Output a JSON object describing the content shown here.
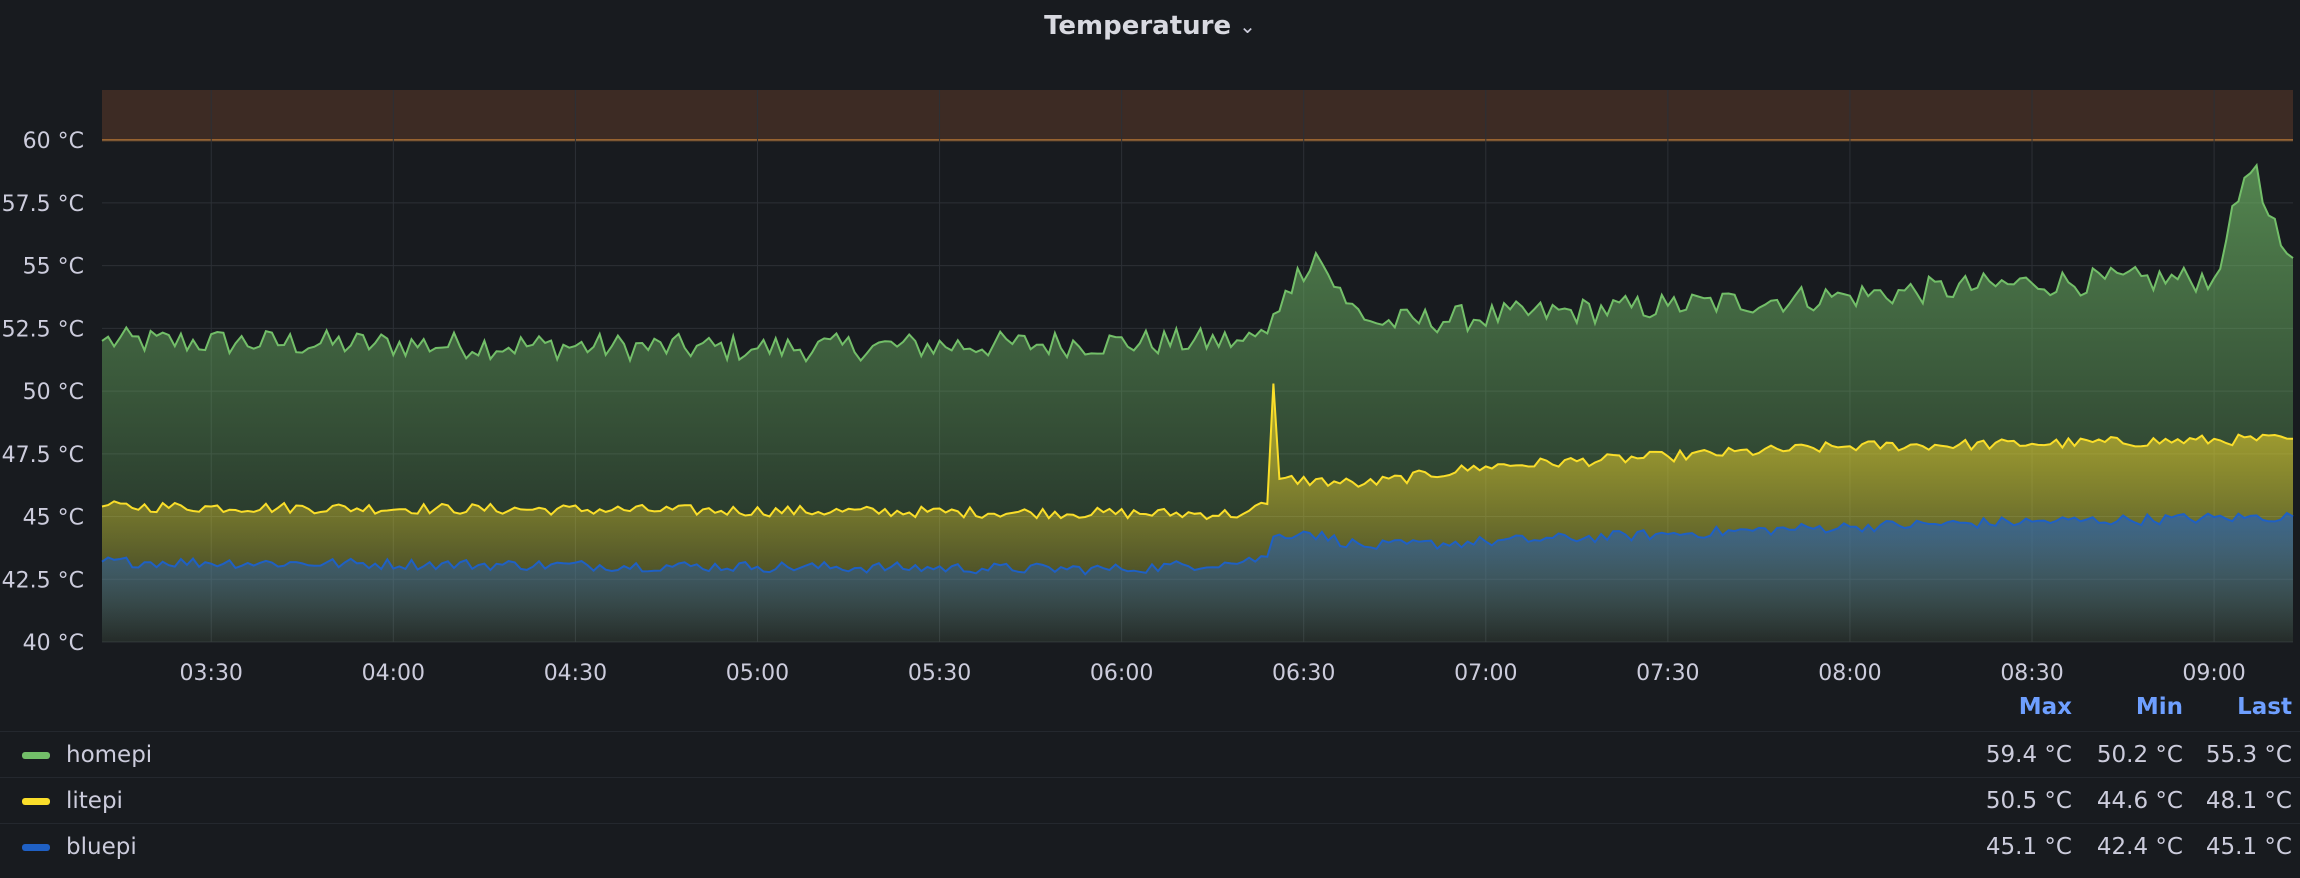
{
  "panel": {
    "title": "Temperature"
  },
  "colors": {
    "background": "#181b1f",
    "grid": "#2c3036",
    "threshold": "#ff9830",
    "threshold_fill": "#3d2b24",
    "homepi": "#73bf69",
    "litepi": "#fade2a",
    "bluepi": "#1f60c4"
  },
  "chart_data": {
    "type": "area",
    "title": "Temperature",
    "unit": "°C",
    "x_ticks": [
      "03:30",
      "04:00",
      "04:30",
      "05:00",
      "05:30",
      "06:00",
      "06:30",
      "07:00",
      "07:30",
      "08:00",
      "08:30",
      "09:00"
    ],
    "x_range": [
      "03:12",
      "09:13"
    ],
    "y_ticks": [
      "40 °C",
      "42.5 °C",
      "45 °C",
      "47.5 °C",
      "50 °C",
      "52.5 °C",
      "55 °C",
      "57.5 °C",
      "60 °C"
    ],
    "ylim": [
      40,
      62
    ],
    "threshold": 60,
    "grid": true,
    "legend_placement": "bottom",
    "sample_interval_minutes": 1,
    "series": [
      {
        "name": "homepi",
        "color_key": "homepi",
        "anchors": [
          [
            "03:12",
            52.0
          ],
          [
            "05:00",
            51.7
          ],
          [
            "06:20",
            52.0
          ],
          [
            "06:24",
            52.3
          ],
          [
            "06:27",
            54.0
          ],
          [
            "06:32",
            55.5
          ],
          [
            "06:37",
            53.5
          ],
          [
            "06:42",
            52.7
          ],
          [
            "07:30",
            53.4
          ],
          [
            "08:00",
            53.8
          ],
          [
            "08:30",
            54.3
          ],
          [
            "09:00",
            54.5
          ],
          [
            "09:02",
            56.0
          ],
          [
            "09:05",
            58.5
          ],
          [
            "09:07",
            59.0
          ],
          [
            "09:09",
            57.0
          ],
          [
            "09:11",
            55.8
          ],
          [
            "09:13",
            55.3
          ]
        ],
        "noise": 0.55,
        "stats": {
          "max": "59.4 °C",
          "min": "50.2 °C",
          "last": "55.3 °C"
        }
      },
      {
        "name": "litepi",
        "color_key": "litepi",
        "anchors": [
          [
            "03:12",
            45.4
          ],
          [
            "06:20",
            45.1
          ],
          [
            "06:24",
            45.5
          ],
          [
            "06:25",
            50.3
          ],
          [
            "06:26",
            46.5
          ],
          [
            "06:40",
            46.3
          ],
          [
            "07:00",
            47.0
          ],
          [
            "07:30",
            47.4
          ],
          [
            "08:00",
            47.8
          ],
          [
            "08:30",
            47.9
          ],
          [
            "09:13",
            48.1
          ]
        ],
        "noise": 0.22,
        "stats": {
          "max": "50.5 °C",
          "min": "44.6 °C",
          "last": "48.1 °C"
        }
      },
      {
        "name": "bluepi",
        "color_key": "bluepi",
        "anchors": [
          [
            "03:12",
            43.2
          ],
          [
            "05:00",
            43.0
          ],
          [
            "06:00",
            42.9
          ],
          [
            "06:20",
            43.2
          ],
          [
            "06:24",
            43.4
          ],
          [
            "06:25",
            44.2
          ],
          [
            "06:30",
            44.4
          ],
          [
            "06:40",
            43.8
          ],
          [
            "07:00",
            44.0
          ],
          [
            "07:30",
            44.3
          ],
          [
            "08:00",
            44.6
          ],
          [
            "08:30",
            44.8
          ],
          [
            "09:13",
            45.0
          ]
        ],
        "noise": 0.22,
        "stats": {
          "max": "45.1 °C",
          "min": "42.4 °C",
          "last": "45.1 °C"
        }
      }
    ]
  },
  "legend": {
    "columns": {
      "max": "Max",
      "min": "Min",
      "last": "Last"
    },
    "rows": [
      {
        "name": "homepi",
        "color_key": "homepi",
        "max": "59.4 °C",
        "min": "50.2 °C",
        "last": "55.3 °C"
      },
      {
        "name": "litepi",
        "color_key": "litepi",
        "max": "50.5 °C",
        "min": "44.6 °C",
        "last": "48.1 °C"
      },
      {
        "name": "bluepi",
        "color_key": "bluepi",
        "max": "45.1 °C",
        "min": "42.4 °C",
        "last": "45.1 °C"
      }
    ]
  }
}
